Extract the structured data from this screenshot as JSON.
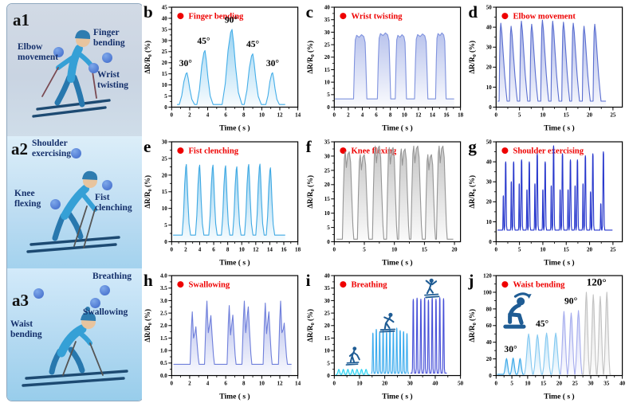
{
  "figure": {
    "panels": [
      {
        "id": "a1",
        "labels": [
          {
            "text": "Elbow movement"
          },
          {
            "text": "Finger bending"
          },
          {
            "text": "Wrist twisting"
          }
        ]
      },
      {
        "id": "a2",
        "labels": [
          {
            "text": "Shoulder exercising"
          },
          {
            "text": "Knee flexing"
          },
          {
            "text": "Fist clenching"
          }
        ]
      },
      {
        "id": "a3",
        "labels": [
          {
            "text": "Breathing"
          },
          {
            "text": "Swallowing"
          },
          {
            "text": "Waist bending"
          }
        ]
      }
    ]
  },
  "colors": {
    "legend_red": "#ee0000",
    "axis": "#000000",
    "icon_blue": "#1f5c94"
  },
  "chart_data": [
    {
      "type": "line",
      "letter": "b",
      "title": "Finger bending",
      "xlabel": "Time ( s )",
      "ylabel": "ΔR/R0 (%)",
      "xlim": [
        0,
        14
      ],
      "xtick": 2,
      "ylim": [
        0,
        45
      ],
      "ytick": 5,
      "ydec": 0,
      "series": [
        {
          "color": "#45aee8",
          "shape": "spike",
          "baseline": 1.2,
          "xstart": 0.6,
          "xend": 12.6,
          "peaks": [
            {
              "t": 1.7,
              "h": 15.5,
              "w": 1.7
            },
            {
              "t": 3.7,
              "h": 25.5,
              "w": 1.8
            },
            {
              "t": 6.7,
              "h": 35,
              "w": 2.2
            },
            {
              "t": 9.0,
              "h": 24,
              "w": 1.9
            },
            {
              "t": 11.2,
              "h": 15.5,
              "w": 1.5
            }
          ]
        }
      ],
      "annotations": [
        {
          "text": "30°",
          "t": 1.55,
          "y": 18.5
        },
        {
          "text": "45°",
          "t": 3.55,
          "y": 28.5
        },
        {
          "text": "90°",
          "t": 6.6,
          "y": 38
        },
        {
          "text": "45°",
          "t": 9.0,
          "y": 27
        },
        {
          "text": "30°",
          "t": 11.2,
          "y": 18.5
        }
      ],
      "icons": []
    },
    {
      "type": "line",
      "letter": "c",
      "title": "Wrist twisting",
      "xlabel": "Time ( s )",
      "ylabel": "ΔR/R0 (%)",
      "xlim": [
        0,
        18
      ],
      "xtick": 2,
      "ylim": [
        0,
        40
      ],
      "ytick": 5,
      "ydec": 0,
      "series": [
        {
          "color": "#8093de",
          "shape": "trap",
          "baseline": 3.3,
          "xstart": 0.1,
          "xend": 17.1,
          "peaks": [
            {
              "t": 3.7,
              "h": 29,
              "w": 1.9
            },
            {
              "t": 7.1,
              "h": 29.7,
              "w": 1.9
            },
            {
              "t": 9.5,
              "h": 29,
              "w": 1.6
            },
            {
              "t": 12.4,
              "h": 29.3,
              "w": 1.9
            },
            {
              "t": 15.2,
              "h": 29.7,
              "w": 1.5
            }
          ]
        }
      ],
      "annotations": [],
      "icons": []
    },
    {
      "type": "line",
      "letter": "d",
      "title": "Elbow movement",
      "xlabel": "Time ( s )",
      "ylabel": "ΔR/R0 (%)",
      "xlim": [
        0,
        27
      ],
      "xtick": 5,
      "ylim": [
        0,
        50
      ],
      "ytick": 10,
      "ydec": 0,
      "series": [
        {
          "color": "#5a6ed0",
          "shape": "fin",
          "baseline": 3,
          "xstart": 0.3,
          "xend": 23.5,
          "peaks": [
            {
              "t": 1.5,
              "h": 42,
              "w": 1.7
            },
            {
              "t": 3.7,
              "h": 40.5,
              "w": 1.7
            },
            {
              "t": 5.9,
              "h": 43,
              "w": 1.7
            },
            {
              "t": 8.1,
              "h": 41.5,
              "w": 1.7
            },
            {
              "t": 10.4,
              "h": 43.5,
              "w": 1.7
            },
            {
              "t": 12.6,
              "h": 43,
              "w": 1.7
            },
            {
              "t": 14.9,
              "h": 42.5,
              "w": 1.7
            },
            {
              "t": 17.0,
              "h": 42,
              "w": 1.7
            },
            {
              "t": 19.3,
              "h": 40.5,
              "w": 1.7
            },
            {
              "t": 21.6,
              "h": 41.5,
              "w": 1.7
            }
          ]
        }
      ],
      "annotations": [],
      "icons": []
    },
    {
      "type": "line",
      "letter": "e",
      "title": "Fist clenching",
      "xlabel": "Time ( s )",
      "ylabel": "ΔR/R0 (%)",
      "xlim": [
        0,
        18
      ],
      "xtick": 2,
      "ylim": [
        0,
        30
      ],
      "ytick": 5,
      "ydec": 0,
      "series": [
        {
          "color": "#3fa9e3",
          "shape": "spike",
          "baseline": 2.0,
          "xstart": 0.2,
          "xend": 16.2,
          "peaks": [
            {
              "t": 2.1,
              "h": 23.2,
              "w": 1.2
            },
            {
              "t": 4.0,
              "h": 23,
              "w": 1.2
            },
            {
              "t": 5.9,
              "h": 23,
              "w": 1.2
            },
            {
              "t": 7.7,
              "h": 22.8,
              "w": 1.2
            },
            {
              "t": 9.3,
              "h": 22.5,
              "w": 1.2
            },
            {
              "t": 11.0,
              "h": 23.2,
              "w": 1.2
            },
            {
              "t": 12.6,
              "h": 23.3,
              "w": 1.2
            },
            {
              "t": 14.1,
              "h": 22.2,
              "w": 1.2
            }
          ]
        }
      ],
      "annotations": [],
      "icons": []
    },
    {
      "type": "line",
      "letter": "f",
      "title": "Knee flexing",
      "xlabel": "Time ( s )",
      "ylabel": "ΔR/R0 (%)",
      "xlim": [
        0,
        21
      ],
      "xtick": 5,
      "ylim": [
        0,
        35
      ],
      "ytick": 5,
      "ydec": 0,
      "series": [
        {
          "color": "#969696",
          "shape": "doubletop",
          "baseline": 0.9,
          "xstart": 0.4,
          "xend": 19.8,
          "peaks": [
            {
              "t": 2.3,
              "h": 31.5,
              "w": 1.9
            },
            {
              "t": 4.8,
              "h": 30.5,
              "w": 1.9
            },
            {
              "t": 7.3,
              "h": 33.5,
              "w": 1.9
            },
            {
              "t": 9.6,
              "h": 33,
              "w": 1.8
            },
            {
              "t": 11.6,
              "h": 32.5,
              "w": 1.8
            },
            {
              "t": 13.7,
              "h": 33.5,
              "w": 1.9
            },
            {
              "t": 16.0,
              "h": 30.5,
              "w": 1.7
            },
            {
              "t": 17.9,
              "h": 33.5,
              "w": 1.8
            }
          ]
        }
      ],
      "annotations": [],
      "icons": []
    },
    {
      "type": "line",
      "letter": "g",
      "title": "Shoulder exercising",
      "xlabel": "Time ( s )",
      "ylabel": "ΔR/R0 (%)",
      "xlim": [
        0,
        27
      ],
      "xtick": 5,
      "ylim": [
        0,
        50
      ],
      "ytick": 10,
      "ydec": 0,
      "series": [
        {
          "color": "#2636cc",
          "shape": "needle",
          "baseline": 5.8,
          "fill": false,
          "xstart": 0.3,
          "xend": 24.9,
          "peaks": [
            {
              "t": 1.55,
              "h": 23,
              "w": 0.4
            },
            {
              "t": 2.05,
              "h": 40,
              "w": 0.6
            },
            {
              "t": 3.25,
              "h": 30,
              "w": 0.4
            },
            {
              "t": 3.75,
              "h": 40,
              "w": 0.6
            },
            {
              "t": 4.95,
              "h": 29,
              "w": 0.4
            },
            {
              "t": 5.45,
              "h": 41,
              "w": 0.6
            },
            {
              "t": 6.6,
              "h": 26,
              "w": 0.4
            },
            {
              "t": 7.1,
              "h": 40,
              "w": 0.6
            },
            {
              "t": 8.3,
              "h": 29,
              "w": 0.4
            },
            {
              "t": 8.8,
              "h": 44,
              "w": 0.6
            },
            {
              "t": 10.0,
              "h": 26,
              "w": 0.4
            },
            {
              "t": 10.5,
              "h": 40,
              "w": 0.6
            },
            {
              "t": 11.8,
              "h": 28,
              "w": 0.4
            },
            {
              "t": 12.3,
              "h": 48,
              "w": 0.6
            },
            {
              "t": 13.7,
              "h": 26,
              "w": 0.4
            },
            {
              "t": 14.2,
              "h": 44,
              "w": 0.6
            },
            {
              "t": 15.4,
              "h": 26,
              "w": 0.4
            },
            {
              "t": 15.9,
              "h": 41,
              "w": 0.6
            },
            {
              "t": 16.9,
              "h": 28,
              "w": 0.4
            },
            {
              "t": 17.4,
              "h": 41,
              "w": 0.6
            },
            {
              "t": 18.6,
              "h": 29,
              "w": 0.4
            },
            {
              "t": 19.1,
              "h": 43,
              "w": 0.6
            },
            {
              "t": 20.2,
              "h": 25,
              "w": 0.4
            },
            {
              "t": 20.7,
              "h": 44,
              "w": 0.6
            },
            {
              "t": 22.4,
              "h": 19,
              "w": 0.4
            },
            {
              "t": 22.95,
              "h": 45,
              "w": 0.6
            }
          ]
        }
      ],
      "annotations": [],
      "icons": []
    },
    {
      "type": "line",
      "letter": "h",
      "title": "Swallowing",
      "xlabel": "Time ( s )",
      "ylabel": "ΔR/R0 (%)",
      "xlim": [
        0,
        14
      ],
      "xtick": 2,
      "ylim": [
        0,
        4.0
      ],
      "ytick": 0.5,
      "ydec": 1,
      "series": [
        {
          "color": "#6f7fdb",
          "shape": "double",
          "baseline": 0.45,
          "xstart": 0.2,
          "xend": 13.3,
          "peaks": [
            {
              "t": 2.55,
              "h": 2.55,
              "h2": 1.95,
              "w": 1.0
            },
            {
              "t": 4.2,
              "h": 2.98,
              "h2": 2.4,
              "w": 1.1
            },
            {
              "t": 6.65,
              "h": 2.8,
              "h2": 2.42,
              "w": 1.0
            },
            {
              "t": 8.35,
              "h": 2.98,
              "h2": 2.75,
              "w": 1.1
            },
            {
              "t": 10.65,
              "h": 2.9,
              "h2": 2.55,
              "w": 1.0
            },
            {
              "t": 12.35,
              "h": 2.98,
              "h2": 2.1,
              "w": 1.0
            }
          ]
        }
      ],
      "annotations": [],
      "icons": []
    },
    {
      "type": "line",
      "letter": "i",
      "title": "Breathing",
      "xlabel": "Time ( s )",
      "ylabel": "ΔR/R0 (%)",
      "xlim": [
        0,
        50
      ],
      "xtick": 10,
      "ylim": [
        0,
        40
      ],
      "ytick": 5,
      "ydec": 0,
      "series": [
        {
          "color": "#2bd4f4",
          "shape": "sine",
          "baseline": 0.4,
          "xstart": 0.5,
          "xend": 14.0,
          "peaks": [
            {
              "t": 1.8,
              "h": 2.5,
              "w": 1.6
            },
            {
              "t": 3.6,
              "h": 2.5,
              "w": 1.6
            },
            {
              "t": 5.4,
              "h": 2.5,
              "w": 1.6
            },
            {
              "t": 7.2,
              "h": 2.5,
              "w": 1.6
            },
            {
              "t": 9.0,
              "h": 2.5,
              "w": 1.6
            },
            {
              "t": 10.8,
              "h": 2.5,
              "w": 1.6
            },
            {
              "t": 12.6,
              "h": 2.5,
              "w": 1.6
            }
          ]
        },
        {
          "color": "#3aabee",
          "shape": "needle",
          "baseline": 0.9,
          "xstart": 14.6,
          "xend": 29.6,
          "peaks": [
            {
              "t": 15.3,
              "h": 17,
              "w": 1.0
            },
            {
              "t": 16.65,
              "h": 18.5,
              "w": 1.0
            },
            {
              "t": 18.0,
              "h": 17.5,
              "w": 1.0
            },
            {
              "t": 19.35,
              "h": 18,
              "w": 1.0
            },
            {
              "t": 20.7,
              "h": 17.2,
              "w": 1.0
            },
            {
              "t": 22.05,
              "h": 18.8,
              "w": 1.0
            },
            {
              "t": 23.4,
              "h": 17.3,
              "w": 1.0
            },
            {
              "t": 24.75,
              "h": 19,
              "w": 1.0
            },
            {
              "t": 26.1,
              "h": 18,
              "w": 1.0
            },
            {
              "t": 27.45,
              "h": 17.6,
              "w": 1.0
            },
            {
              "t": 28.8,
              "h": 16.8,
              "w": 1.0
            }
          ]
        },
        {
          "color": "#4750d8",
          "shape": "needle",
          "baseline": 1.0,
          "xstart": 30.2,
          "xend": 44.6,
          "peaks": [
            {
              "t": 31.3,
              "h": 30.5,
              "w": 1.05
            },
            {
              "t": 32.8,
              "h": 31,
              "w": 1.05
            },
            {
              "t": 34.3,
              "h": 30.6,
              "w": 1.05
            },
            {
              "t": 35.8,
              "h": 31,
              "w": 1.05
            },
            {
              "t": 37.3,
              "h": 30.2,
              "w": 1.05
            },
            {
              "t": 38.8,
              "h": 31,
              "w": 1.05
            },
            {
              "t": 40.3,
              "h": 30.6,
              "w": 1.05
            },
            {
              "t": 41.8,
              "h": 31.2,
              "w": 1.05
            },
            {
              "t": 43.3,
              "h": 30.8,
              "w": 1.05
            }
          ]
        }
      ],
      "annotations": [],
      "icons": [
        {
          "type": "skier1",
          "t": 6.5,
          "y": 8,
          "size": 26
        },
        {
          "type": "skier2",
          "t": 21,
          "y": 21.5,
          "size": 28
        },
        {
          "type": "skier3",
          "t": 38.5,
          "y": 35,
          "size": 28
        }
      ]
    },
    {
      "type": "line",
      "letter": "j",
      "title": "Waist bending",
      "xlabel": "Time ( s )",
      "ylabel": "ΔR/R0 (%)",
      "xlim": [
        0,
        40
      ],
      "xtick": 5,
      "ylim": [
        0,
        120
      ],
      "ytick": 20,
      "ydec": 0,
      "series": [
        {
          "color": "#3aa8e8",
          "shape": "sine",
          "baseline": 1.5,
          "xstart": 0.3,
          "xend": 8.8,
          "peaks": [
            {
              "t": 3.3,
              "h": 20.5,
              "w": 1.8
            },
            {
              "t": 5.4,
              "h": 21,
              "w": 1.8
            },
            {
              "t": 7.6,
              "h": 20.5,
              "w": 1.8
            }
          ]
        },
        {
          "color": "#85c9f1",
          "shape": "sine",
          "baseline": 1.5,
          "xstart": 8.8,
          "xend": 20.2,
          "peaks": [
            {
              "t": 10.3,
              "h": 50,
              "w": 2.6
            },
            {
              "t": 13.1,
              "h": 49,
              "w": 2.6
            },
            {
              "t": 16.0,
              "h": 51,
              "w": 2.6
            },
            {
              "t": 18.9,
              "h": 51,
              "w": 2.6
            }
          ]
        },
        {
          "color": "#a6adee",
          "shape": "sine",
          "baseline": 1.5,
          "xstart": 20.2,
          "xend": 27.2,
          "peaks": [
            {
              "t": 21.5,
              "h": 77,
              "w": 2.2
            },
            {
              "t": 23.8,
              "h": 75,
              "w": 2.2
            },
            {
              "t": 26.1,
              "h": 78,
              "w": 2.2
            }
          ]
        },
        {
          "color": "#c2c2c2",
          "shape": "sine",
          "baseline": 1.5,
          "xstart": 27.2,
          "xend": 36.4,
          "peaks": [
            {
              "t": 28.6,
              "h": 100,
              "w": 2.0
            },
            {
              "t": 30.8,
              "h": 97,
              "w": 2.0
            },
            {
              "t": 33.0,
              "h": 95,
              "w": 2.0
            },
            {
              "t": 35.1,
              "h": 100,
              "w": 2.0
            }
          ]
        }
      ],
      "annotations": [
        {
          "text": "30°",
          "t": 4.6,
          "y": 28
        },
        {
          "text": "45°",
          "t": 14.6,
          "y": 59
        },
        {
          "text": "90°",
          "t": 23.7,
          "y": 86
        },
        {
          "text": "120°",
          "t": 31.8,
          "y": 108,
          "size": 13
        }
      ],
      "icons": [
        {
          "type": "bend",
          "t": 5.6,
          "y": 78,
          "size": 46
        }
      ]
    }
  ]
}
